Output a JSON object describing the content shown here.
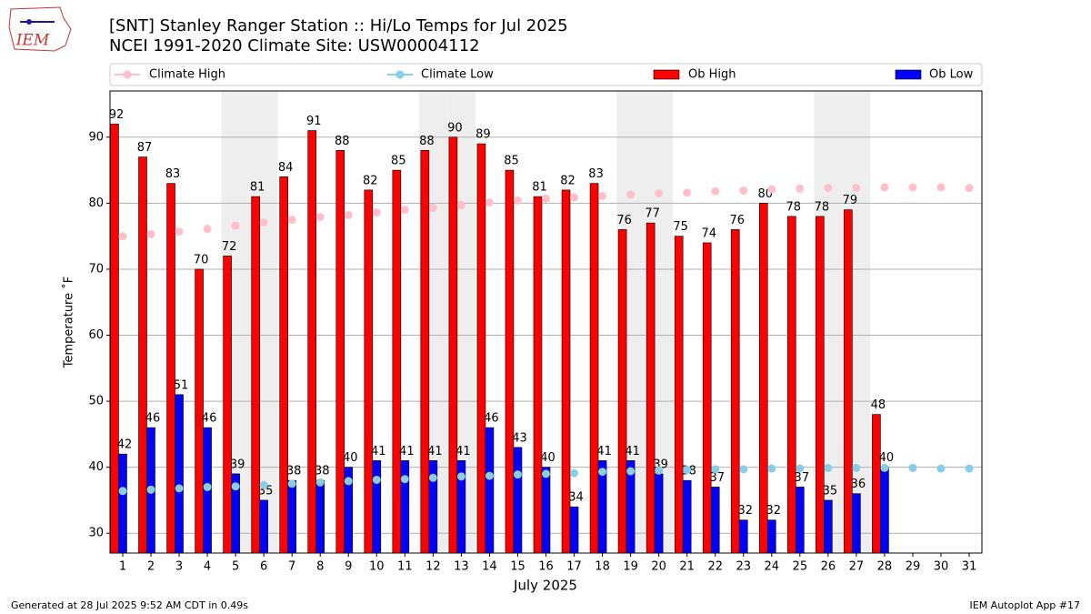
{
  "logo": "IEM",
  "footer_left": "Generated at 28 Jul 2025 9:52 AM CDT in 0.49s",
  "footer_right": "IEM Autoplot App #17",
  "chart_data": {
    "type": "bar_line",
    "title": "[SNT] Stanley Ranger Station :: Hi/Lo Temps for Jul 2025",
    "subtitle": "NCEI 1991-2020 Climate Site: USW00004112",
    "x_label": "July 2025",
    "y_label": "Temperature ˚F",
    "x": [
      1,
      2,
      3,
      4,
      5,
      6,
      7,
      8,
      9,
      10,
      11,
      12,
      13,
      14,
      15,
      16,
      17,
      18,
      19,
      20,
      21,
      22,
      23,
      24,
      25,
      26,
      27,
      28,
      29,
      30,
      31
    ],
    "xlim": [
      0.55,
      31.45
    ],
    "xticks": [
      1,
      2,
      3,
      4,
      5,
      6,
      7,
      8,
      9,
      10,
      11,
      12,
      13,
      14,
      15,
      16,
      17,
      18,
      19,
      20,
      21,
      22,
      23,
      24,
      25,
      26,
      27,
      28,
      29,
      30,
      31
    ],
    "ylim": [
      27,
      97
    ],
    "yticks": [
      30,
      40,
      50,
      60,
      70,
      80,
      90
    ],
    "grid": true,
    "shaded_days": [
      5,
      6,
      12,
      13,
      19,
      20,
      26,
      27
    ],
    "shade_color": "#eeeeee",
    "series": [
      {
        "name": "Climate High",
        "kind": "line",
        "color": "#ffc0cb",
        "values": [
          75.0,
          75.3,
          75.7,
          76.1,
          76.6,
          77.1,
          77.5,
          77.9,
          78.2,
          78.6,
          79.0,
          79.3,
          79.7,
          80.1,
          80.4,
          80.7,
          80.9,
          81.1,
          81.3,
          81.5,
          81.6,
          81.8,
          81.9,
          82.1,
          82.2,
          82.3,
          82.3,
          82.4,
          82.4,
          82.4,
          82.3
        ]
      },
      {
        "name": "Climate Low",
        "kind": "line",
        "color": "#87ceeb",
        "values": [
          36.4,
          36.6,
          36.8,
          37.0,
          37.1,
          37.3,
          37.5,
          37.7,
          37.9,
          38.1,
          38.2,
          38.4,
          38.6,
          38.7,
          38.9,
          39.0,
          39.1,
          39.3,
          39.4,
          39.5,
          39.6,
          39.7,
          39.7,
          39.8,
          39.8,
          39.9,
          39.9,
          39.9,
          39.9,
          39.8,
          39.8
        ]
      },
      {
        "name": "Ob High",
        "kind": "bar",
        "color": "#ff0000",
        "values": [
          92,
          87,
          83,
          70,
          72,
          81,
          84,
          91,
          88,
          82,
          85,
          88,
          90,
          89,
          85,
          81,
          82,
          83,
          76,
          77,
          75,
          74,
          76,
          80,
          78,
          78,
          79,
          48,
          null,
          null,
          null
        ]
      },
      {
        "name": "Ob Low",
        "kind": "bar",
        "color": "#0000ff",
        "values": [
          42,
          46,
          51,
          46,
          39,
          35,
          38,
          38,
          40,
          41,
          41,
          41,
          41,
          46,
          43,
          40,
          34,
          41,
          41,
          39,
          38,
          37,
          32,
          32,
          37,
          35,
          36,
          40,
          null,
          null,
          null
        ]
      }
    ]
  }
}
